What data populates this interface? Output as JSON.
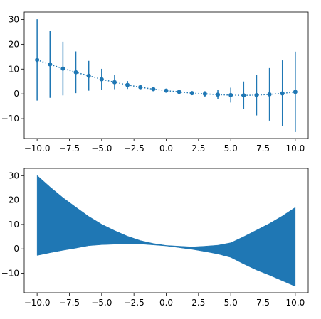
{
  "chart_data": [
    {
      "type": "line",
      "subtype": "errorbar",
      "title": "",
      "xlabel": "",
      "ylabel": "",
      "xlim": [
        -11.0,
        11.0
      ],
      "ylim": [
        -18.0,
        33.0
      ],
      "xticks": [
        "−10.0",
        "−7.5",
        "−5.0",
        "−2.5",
        "0.0",
        "2.5",
        "5.0",
        "7.5",
        "10.0"
      ],
      "yticks": [
        "−10",
        "0",
        "10",
        "20",
        "30"
      ],
      "color": "#1f77b4",
      "series": [
        {
          "x": [
            -10,
            -9,
            -8,
            -7,
            -6,
            -5,
            -4,
            -3,
            -2,
            -1,
            0,
            1,
            2,
            3,
            4,
            5,
            6,
            7,
            8,
            9,
            10
          ],
          "y": [
            13.7,
            11.9,
            10.2,
            8.7,
            7.3,
            5.9,
            4.7,
            3.6,
            2.7,
            1.9,
            1.3,
            0.8,
            0.3,
            0.0,
            -0.3,
            -0.5,
            -0.6,
            -0.5,
            -0.2,
            0.2,
            0.8
          ],
          "yerr": [
            16.4,
            13.5,
            10.8,
            8.4,
            6.0,
            4.2,
            2.8,
            1.6,
            0.7,
            0.3,
            0.1,
            0.3,
            0.5,
            1.1,
            1.8,
            3.0,
            5.6,
            8.2,
            10.6,
            13.3,
            16.2
          ]
        }
      ],
      "line_style": "dotted",
      "marker": "circle"
    },
    {
      "type": "area",
      "subtype": "fill_between",
      "title": "",
      "xlabel": "",
      "ylabel": "",
      "xlim": [
        -11.0,
        11.0
      ],
      "ylim": [
        -18.0,
        33.0
      ],
      "xticks": [
        "−10.0",
        "−7.5",
        "−5.0",
        "−2.5",
        "0.0",
        "2.5",
        "5.0",
        "7.5",
        "10.0"
      ],
      "yticks": [
        "−10",
        "0",
        "10",
        "20",
        "30"
      ],
      "color": "#1f77b4",
      "series": [
        {
          "x": [
            -10,
            -9,
            -8,
            -7,
            -6,
            -5,
            -4,
            -3,
            -2,
            -1,
            0,
            1,
            2,
            3,
            4,
            5,
            6,
            7,
            8,
            9,
            10
          ],
          "upper": [
            30.1,
            25.4,
            21.0,
            17.1,
            13.3,
            10.1,
            7.5,
            5.2,
            3.4,
            2.2,
            1.4,
            1.1,
            0.8,
            1.1,
            1.5,
            2.5,
            5.0,
            7.7,
            10.4,
            13.5,
            17.0
          ],
          "lower": [
            -2.7,
            -1.6,
            -0.6,
            0.3,
            1.3,
            1.7,
            1.9,
            2.0,
            2.0,
            1.6,
            1.2,
            0.5,
            -0.2,
            -1.1,
            -2.1,
            -3.5,
            -6.2,
            -8.7,
            -10.8,
            -13.1,
            -15.4
          ]
        }
      ]
    }
  ]
}
